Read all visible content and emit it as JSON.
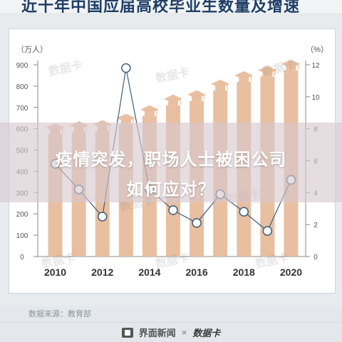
{
  "header": {
    "title": "近十年中国应届高校毕业生数量及增速"
  },
  "overlay": {
    "line1": "疫情突发，职场人士被困公司",
    "line2": "如何应对？"
  },
  "watermark": "数据卡",
  "source": "数据来源：教育部",
  "footer": {
    "brand": "界面新闻",
    "times": "×",
    "partner": "数据卡"
  },
  "colors": {
    "bar": "#e8bfa0",
    "line": "#3b5f7f",
    "marker_fill": "#ffffff"
  },
  "chart_data": {
    "type": "bar+line",
    "categories": [
      "2010",
      "2011",
      "2012",
      "2013",
      "2014",
      "2015",
      "2016",
      "2017",
      "2018",
      "2019",
      "2020"
    ],
    "x_tick_labels": [
      "2010",
      "",
      "2012",
      "",
      "2014",
      "",
      "2016",
      "",
      "2018",
      "",
      "2020"
    ],
    "left_unit": "（万人）",
    "right_unit": "（%）",
    "left_ticks": [
      0,
      100,
      200,
      300,
      400,
      500,
      600,
      700,
      800,
      900
    ],
    "right_ticks": [
      0,
      2,
      4,
      6,
      8,
      10,
      12
    ],
    "left_ylim": [
      0,
      900
    ],
    "right_ylim": [
      0,
      12
    ],
    "series": [
      {
        "type": "bar",
        "axis": "left",
        "values": [
          575,
          585,
          590,
          620,
          660,
          710,
          730,
          780,
          820,
          845,
          874
        ]
      },
      {
        "type": "line",
        "axis": "right",
        "values": [
          5.8,
          4.2,
          2.5,
          11.8,
          4.2,
          2.9,
          2.1,
          3.9,
          2.8,
          1.6,
          4.8
        ]
      }
    ],
    "grid": false
  }
}
